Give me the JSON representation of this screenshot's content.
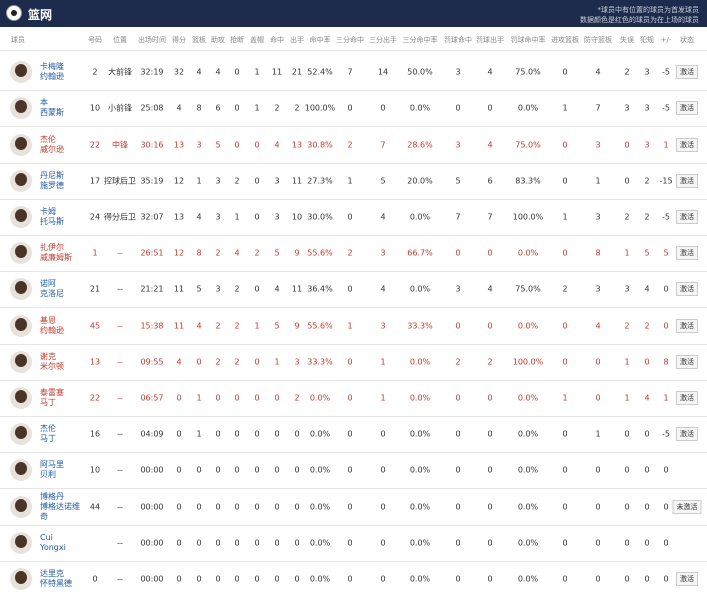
{
  "header": {
    "title": "篮网",
    "notes": [
      "*球员中有位置的球员为首发球员",
      "数据颜色是红色的球员为在上场的球员"
    ]
  },
  "table": {
    "columns": [
      "球员",
      "号码",
      "位置",
      "出场时间",
      "得分",
      "篮板",
      "助攻",
      "抢断",
      "盖帽",
      "命中",
      "出手",
      "命中率",
      "三分命中",
      "三分出手",
      "三分命中率",
      "罚球命中",
      "罚球出手",
      "罚球命中率",
      "进攻篮板",
      "防守篮板",
      "失误",
      "犯规",
      "+/-",
      "状态"
    ],
    "rows": [
      {
        "name": [
          "卡梅隆",
          "约翰逊"
        ],
        "on_court": false,
        "cells": [
          "2",
          "大前锋",
          "32:19",
          "32",
          "4",
          "4",
          "0",
          "1",
          "11",
          "21",
          "52.4%",
          "7",
          "14",
          "50.0%",
          "3",
          "4",
          "75.0%",
          "0",
          "4",
          "2",
          "3",
          "-5"
        ],
        "status": "激活"
      },
      {
        "name": [
          "本",
          "西蒙斯"
        ],
        "on_court": false,
        "cells": [
          "10",
          "小前锋",
          "25:08",
          "4",
          "8",
          "6",
          "0",
          "1",
          "2",
          "2",
          "100.0%",
          "0",
          "0",
          "0.0%",
          "0",
          "0",
          "0.0%",
          "1",
          "7",
          "3",
          "3",
          "-5"
        ],
        "status": "激活"
      },
      {
        "name": [
          "杰伦",
          "威尔逊"
        ],
        "on_court": true,
        "cells": [
          "22",
          "中锋",
          "30:16",
          "13",
          "3",
          "5",
          "0",
          "0",
          "4",
          "13",
          "30.8%",
          "2",
          "7",
          "28.6%",
          "3",
          "4",
          "75.0%",
          "0",
          "3",
          "0",
          "3",
          "1"
        ],
        "status": "激活"
      },
      {
        "name": [
          "丹尼斯",
          "施罗德"
        ],
        "on_court": false,
        "cells": [
          "17",
          "控球后卫",
          "35:19",
          "12",
          "1",
          "3",
          "2",
          "0",
          "3",
          "11",
          "27.3%",
          "1",
          "5",
          "20.0%",
          "5",
          "6",
          "83.3%",
          "0",
          "1",
          "0",
          "2",
          "-15"
        ],
        "status": "激活"
      },
      {
        "name": [
          "卡姆",
          "托马斯"
        ],
        "on_court": false,
        "cells": [
          "24",
          "得分后卫",
          "32:07",
          "13",
          "4",
          "3",
          "1",
          "0",
          "3",
          "10",
          "30.0%",
          "0",
          "4",
          "0.0%",
          "7",
          "7",
          "100.0%",
          "1",
          "3",
          "2",
          "2",
          "-5"
        ],
        "status": "激活"
      },
      {
        "name": [
          "扎伊尔",
          "威廉姆斯"
        ],
        "on_court": true,
        "cells": [
          "1",
          "--",
          "26:51",
          "12",
          "8",
          "2",
          "4",
          "2",
          "5",
          "9",
          "55.6%",
          "2",
          "3",
          "66.7%",
          "0",
          "0",
          "0.0%",
          "0",
          "8",
          "1",
          "5",
          "5"
        ],
        "status": "激活"
      },
      {
        "name": [
          "诺阿",
          "克洛尼"
        ],
        "on_court": false,
        "cells": [
          "21",
          "--",
          "21:21",
          "11",
          "5",
          "3",
          "2",
          "0",
          "4",
          "11",
          "36.4%",
          "0",
          "4",
          "0.0%",
          "3",
          "4",
          "75.0%",
          "2",
          "3",
          "3",
          "4",
          "0"
        ],
        "status": "激活"
      },
      {
        "name": [
          "基恩",
          "约翰逊"
        ],
        "on_court": true,
        "cells": [
          "45",
          "--",
          "15:38",
          "11",
          "4",
          "2",
          "2",
          "1",
          "5",
          "9",
          "55.6%",
          "1",
          "3",
          "33.3%",
          "0",
          "0",
          "0.0%",
          "0",
          "4",
          "2",
          "2",
          "0"
        ],
        "status": "激活"
      },
      {
        "name": [
          "谢克",
          "米尔顿"
        ],
        "on_court": true,
        "cells": [
          "13",
          "--",
          "09:55",
          "4",
          "0",
          "2",
          "2",
          "0",
          "1",
          "3",
          "33.3%",
          "0",
          "1",
          "0.0%",
          "2",
          "2",
          "100.0%",
          "0",
          "0",
          "1",
          "0",
          "8"
        ],
        "status": "激活"
      },
      {
        "name": [
          "泰雷塞",
          "马丁"
        ],
        "on_court": true,
        "cells": [
          "22",
          "--",
          "06:57",
          "0",
          "1",
          "0",
          "0",
          "0",
          "0",
          "2",
          "0.0%",
          "0",
          "1",
          "0.0%",
          "0",
          "0",
          "0.0%",
          "1",
          "0",
          "1",
          "4",
          "1"
        ],
        "status": "激活"
      },
      {
        "name": [
          "杰伦",
          "马丁"
        ],
        "on_court": false,
        "cells": [
          "16",
          "--",
          "04:09",
          "0",
          "1",
          "0",
          "0",
          "0",
          "0",
          "0",
          "0.0%",
          "0",
          "0",
          "0.0%",
          "0",
          "0",
          "0.0%",
          "0",
          "1",
          "0",
          "0",
          "-5"
        ],
        "status": "激活"
      },
      {
        "name": [
          "阿马里",
          "贝利"
        ],
        "on_court": false,
        "cells": [
          "10",
          "--",
          "00:00",
          "0",
          "0",
          "0",
          "0",
          "0",
          "0",
          "0",
          "0.0%",
          "0",
          "0",
          "0.0%",
          "0",
          "0",
          "0.0%",
          "0",
          "0",
          "0",
          "0",
          "0"
        ]
      },
      {
        "name": [
          "博格丹",
          "博格达诺维",
          "奇"
        ],
        "on_court": false,
        "cells": [
          "44",
          "--",
          "00:00",
          "0",
          "0",
          "0",
          "0",
          "0",
          "0",
          "0",
          "0.0%",
          "0",
          "0",
          "0.0%",
          "0",
          "0",
          "0.0%",
          "0",
          "0",
          "0",
          "0",
          "0"
        ],
        "status": "未激活"
      },
      {
        "name": [
          "Cui",
          "Yongxi"
        ],
        "on_court": false,
        "cells": [
          null,
          "--",
          "00:00",
          "0",
          "0",
          "0",
          "0",
          "0",
          "0",
          "0",
          "0.0%",
          "0",
          "0",
          "0.0%",
          "0",
          "0",
          "0.0%",
          "0",
          "0",
          "0",
          "0",
          "0"
        ]
      },
      {
        "name": [
          "达里克",
          "怀特黑德"
        ],
        "on_court": false,
        "cells": [
          "0",
          "--",
          "00:00",
          "0",
          "0",
          "0",
          "0",
          "0",
          "0",
          "0",
          "0.0%",
          "0",
          "0",
          "0.0%",
          "0",
          "0",
          "0.0%",
          "0",
          "0",
          "0",
          "0",
          "0"
        ],
        "status": "激活"
      }
    ]
  }
}
